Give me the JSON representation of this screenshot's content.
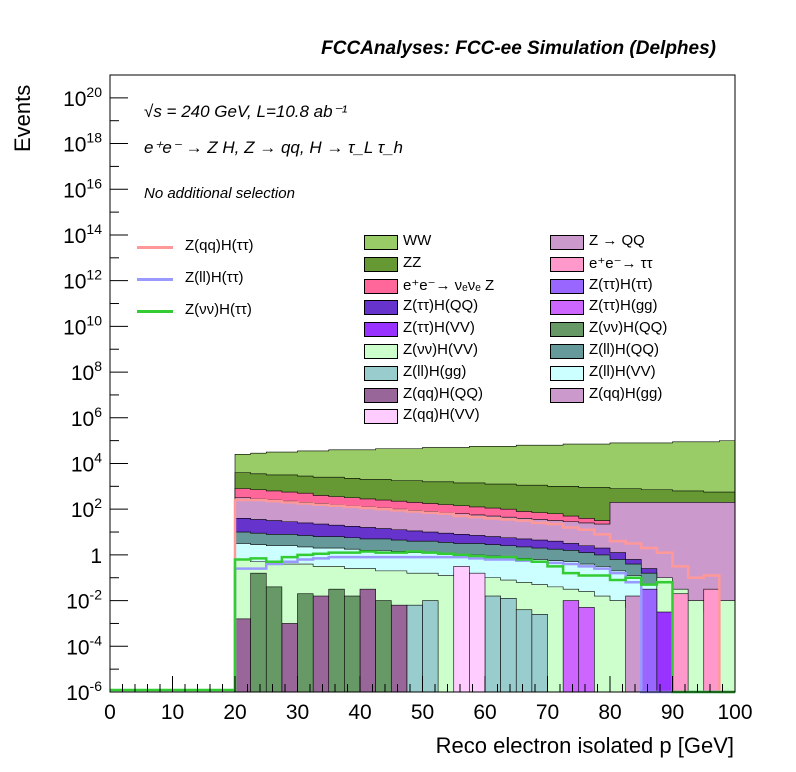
{
  "header": {
    "title": "FCCAnalyses: FCC-ee Simulation (Delphes)"
  },
  "annotations": {
    "line1": "√s = 240 GeV, L=10.8 ab⁻¹",
    "line2": "e⁺e⁻ → Z H, Z → qq, H → τ_L τ_h",
    "line3": "No additional selection"
  },
  "chart_data": {
    "type": "area",
    "title": "FCCAnalyses: FCC-ee Simulation (Delphes)",
    "xlabel": "Reco electron isolated p [GeV]",
    "ylabel": "Events",
    "xlim": [
      0,
      100
    ],
    "ylim": [
      1e-06,
      1e+21
    ],
    "y_scale": "log",
    "x_ticks": [
      "0",
      "10",
      "20",
      "30",
      "40",
      "50",
      "60",
      "70",
      "80",
      "90",
      "100"
    ],
    "y_ticks": [
      "10^-6",
      "10^-4",
      "10^-2",
      "1",
      "10^2",
      "10^4",
      "10^6",
      "10^8",
      "10^10",
      "10^12",
      "10^14",
      "10^16",
      "10^18",
      "10^20"
    ],
    "bin_edges": [
      20,
      22.5,
      25,
      27.5,
      30,
      32.5,
      35,
      37.5,
      40,
      42.5,
      45,
      47.5,
      50,
      52.5,
      55,
      57.5,
      60,
      62.5,
      65,
      67.5,
      70,
      72.5,
      75,
      77.5,
      80,
      82.5,
      85,
      87.5,
      90,
      92.5,
      95,
      97.5,
      100
    ],
    "stacked_series": [
      {
        "name": "WW",
        "color": "#99cc66",
        "log10_top": [
          4.4,
          4.45,
          4.5,
          4.5,
          4.55,
          4.55,
          4.6,
          4.6,
          4.6,
          4.65,
          4.65,
          4.65,
          4.7,
          4.7,
          4.7,
          4.75,
          4.75,
          4.75,
          4.8,
          4.8,
          4.8,
          4.85,
          4.85,
          4.85,
          4.9,
          4.9,
          4.9,
          4.9,
          4.95,
          4.95,
          4.95,
          5.0
        ]
      },
      {
        "name": "ZZ",
        "color": "#669933",
        "log10_top": [
          3.6,
          3.55,
          3.5,
          3.5,
          3.45,
          3.4,
          3.4,
          3.35,
          3.3,
          3.3,
          3.25,
          3.25,
          3.2,
          3.2,
          3.15,
          3.15,
          3.1,
          3.1,
          3.05,
          3.05,
          3.0,
          3.0,
          2.95,
          2.95,
          2.9,
          2.9,
          2.85,
          2.85,
          2.8,
          2.8,
          2.75,
          2.75
        ]
      },
      {
        "name": "e⁺e⁻→ νₑνₑ Z",
        "color": "#ff6699",
        "log10_top": [
          2.9,
          2.85,
          2.8,
          2.75,
          2.7,
          2.6,
          2.55,
          2.5,
          2.45,
          2.4,
          2.35,
          2.3,
          2.25,
          2.2,
          2.15,
          2.1,
          2.05,
          2.0,
          1.9,
          1.85,
          1.8,
          1.7,
          1.6,
          1.5,
          1.3,
          1.1,
          0.8,
          0.3,
          -1.0,
          -1.6,
          -2.0,
          -3.0
        ]
      },
      {
        "name": "Z → QQ",
        "color": "#cc99cc",
        "log10_top": [
          2.5,
          2.45,
          2.4,
          2.35,
          2.3,
          2.25,
          2.2,
          2.15,
          2.1,
          2.05,
          2.0,
          1.95,
          1.9,
          1.85,
          1.8,
          1.75,
          1.7,
          1.65,
          1.6,
          1.55,
          1.5,
          1.45,
          1.4,
          1.35,
          2.3,
          2.3,
          2.3,
          2.3,
          2.3,
          2.3,
          2.3,
          2.3
        ]
      },
      {
        "name": "Z(ττ)H(QQ)",
        "color": "#6633cc",
        "log10_top": [
          1.6,
          1.55,
          1.5,
          1.45,
          1.4,
          1.35,
          1.3,
          1.25,
          1.2,
          1.15,
          1.1,
          1.05,
          1.0,
          0.95,
          0.9,
          0.85,
          0.8,
          0.75,
          0.7,
          0.65,
          0.6,
          0.5,
          0.4,
          0.3,
          0.1,
          -0.2,
          -0.6,
          -1.2,
          -2.0,
          -3.0,
          -4.0,
          -5.0
        ]
      },
      {
        "name": "Z(ll)H(QQ)",
        "color": "#669999",
        "log10_top": [
          1.0,
          0.95,
          0.9,
          0.9,
          0.85,
          0.8,
          0.8,
          0.75,
          0.7,
          0.7,
          0.65,
          0.6,
          0.6,
          0.55,
          0.5,
          0.5,
          0.45,
          0.4,
          0.35,
          0.3,
          0.25,
          0.2,
          0.1,
          0.0,
          -0.2,
          -0.4,
          -0.8,
          -1.4,
          -2.4,
          -3.5,
          -5.0,
          -5.5
        ]
      },
      {
        "name": "Z(ll)H(VV)",
        "color": "#ccffff",
        "log10_top": [
          0.5,
          0.45,
          0.4,
          0.4,
          0.35,
          0.3,
          0.3,
          0.25,
          0.2,
          0.2,
          0.15,
          0.1,
          0.1,
          0.05,
          0.0,
          0.0,
          -0.05,
          -0.1,
          -0.15,
          -0.2,
          -0.25,
          -0.3,
          -0.4,
          -0.5,
          -0.7,
          -0.9,
          -1.3,
          -1.9,
          -2.9,
          -4.0,
          -5.2,
          -5.8
        ]
      },
      {
        "name": "Z(νν)H(VV)",
        "color": "#ccffcc",
        "log10_top": [
          -0.2,
          -0.3,
          -0.3,
          -0.4,
          -0.4,
          -0.5,
          -0.5,
          -0.6,
          -0.6,
          -0.7,
          -0.7,
          -0.8,
          -0.8,
          -0.9,
          -0.9,
          -1.0,
          -1.0,
          -1.1,
          -1.2,
          -1.3,
          -1.4,
          -1.5,
          -1.6,
          -1.8,
          -2.0,
          -2.3,
          -2.6,
          -1.0,
          -1.5,
          -2.0,
          -2.5,
          -2.0
        ]
      }
    ],
    "line_series": [
      {
        "name": "Z(qq)H(ττ)",
        "color": "#ff9999",
        "log10": [
          2.4,
          2.4,
          2.35,
          2.3,
          2.25,
          2.2,
          2.15,
          2.1,
          2.05,
          2.0,
          1.95,
          1.9,
          1.85,
          1.8,
          1.7,
          1.65,
          1.6,
          1.55,
          1.5,
          1.4,
          1.35,
          1.2,
          1.1,
          0.9,
          0.6,
          0.5,
          0.3,
          0.1,
          -0.5,
          -1.0,
          -0.9,
          -6.0
        ]
      },
      {
        "name": "Z(ll)H(ττ)",
        "color": "#9999ff",
        "log10": [
          -0.6,
          -0.6,
          -0.4,
          -0.3,
          -0.2,
          -0.15,
          -0.1,
          -0.1,
          -0.1,
          -0.1,
          -0.1,
          -0.1,
          -0.1,
          -0.1,
          -0.1,
          -0.15,
          -0.2,
          -0.2,
          -0.25,
          -0.3,
          -0.35,
          -0.4,
          -0.5,
          -0.6,
          -0.8,
          -1.2,
          -6.0,
          -6.0,
          -6.0,
          -6.0,
          -6.0,
          -6.0
        ]
      },
      {
        "name": "Z(νν)H(ττ)",
        "color": "#33cc33",
        "log10": [
          -0.2,
          -0.15,
          -0.3,
          -0.1,
          0.0,
          0.05,
          0.1,
          0.1,
          0.15,
          0.1,
          0.1,
          0.15,
          0.1,
          0.05,
          0.0,
          -0.05,
          -0.1,
          -0.1,
          -0.2,
          -0.3,
          -0.5,
          -0.8,
          -0.9,
          -0.9,
          -1.1,
          -1.0,
          -1.3,
          -1.2,
          -6.0,
          -6.0,
          -6.0,
          -6.0
        ]
      }
    ],
    "spikes": [
      {
        "name": "Z(ll)H(gg)",
        "color": "#99cccc",
        "bins": [
          11,
          12,
          16,
          17,
          18,
          19
        ],
        "log10": [
          -2.2,
          -2.0,
          -1.8,
          -1.9,
          -2.4,
          -2.6
        ]
      },
      {
        "name": "Z(qq)H(QQ)",
        "color": "#996699",
        "bins": [
          0,
          3,
          5,
          8,
          10
        ],
        "log10": [
          -2.8,
          -3.0,
          -1.8,
          -1.5,
          -2.2
        ]
      },
      {
        "name": "Z(νν)H(QQ)",
        "color": "#669966",
        "bins": [
          1,
          2,
          4,
          6,
          7,
          9
        ],
        "log10": [
          -0.8,
          -1.4,
          -1.7,
          -1.5,
          -1.8,
          -2.0
        ]
      },
      {
        "name": "Z(qq)H(VV)",
        "color": "#ffccff",
        "bins": [
          14,
          15
        ],
        "log10": [
          -0.5,
          -0.8
        ]
      },
      {
        "name": "Z(ττ)H(gg)",
        "color": "#cc66ff",
        "bins": [
          21,
          22
        ],
        "log10": [
          -2.0,
          -2.3
        ]
      },
      {
        "name": "Z(ττ)H(ττ)",
        "color": "#9966ff",
        "bins": [
          26
        ],
        "log10": [
          -1.5
        ]
      },
      {
        "name": "Z(ττ)H(VV)",
        "color": "#9933ff",
        "bins": [
          27
        ],
        "log10": [
          -2.5
        ]
      },
      {
        "name": "e⁺e⁻→ ττ",
        "color": "#ff99cc",
        "bins": [
          28,
          30
        ],
        "log10": [
          -1.7,
          -1.5
        ]
      },
      {
        "name": "Z(qq)H(gg)",
        "color": "#cc99cc",
        "bins": [
          25
        ],
        "log10": [
          -1.8
        ]
      }
    ],
    "legend": {
      "lines": [
        "Z(qq)H(ττ)",
        "Z(ll)H(ττ)",
        "Z(νν)H(ττ)"
      ],
      "col1": [
        "WW",
        "ZZ",
        "e⁺e⁻→ νₑνₑ Z",
        "Z(ττ)H(QQ)",
        "Z(ττ)H(VV)",
        "Z(νν)H(VV)",
        "Z(ll)H(gg)",
        "Z(qq)H(QQ)",
        "Z(qq)H(VV)"
      ],
      "col2": [
        "Z → QQ",
        "e⁺e⁻→ ττ",
        "Z(ττ)H(ττ)",
        "Z(ττ)H(gg)",
        "Z(νν)H(QQ)",
        "Z(ll)H(QQ)",
        "Z(ll)H(VV)",
        "Z(qq)H(gg)"
      ],
      "col1_colors": [
        "#99cc66",
        "#669933",
        "#ff6699",
        "#6633cc",
        "#9933ff",
        "#ccffcc",
        "#99cccc",
        "#996699",
        "#ffccff"
      ],
      "col2_colors": [
        "#cc99cc",
        "#ff99cc",
        "#9966ff",
        "#cc66ff",
        "#669966",
        "#669999",
        "#ccffff",
        "#cc99cc"
      ],
      "line_colors": [
        "#ff9999",
        "#9999ff",
        "#33cc33"
      ]
    }
  }
}
